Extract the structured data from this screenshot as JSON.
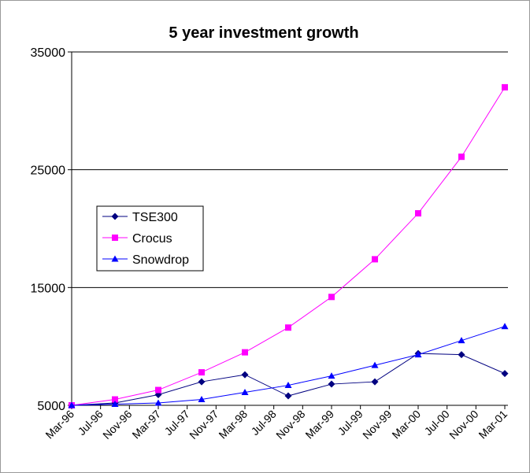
{
  "chart_data": {
    "type": "line",
    "title": "5 year investment growth",
    "x": [
      0,
      6,
      12,
      18,
      24,
      30,
      36,
      42,
      48,
      54,
      60
    ],
    "xlim": [
      0,
      60
    ],
    "xticks": [
      {
        "value": 0,
        "label": "Mar-96"
      },
      {
        "value": 4,
        "label": "Jul-96"
      },
      {
        "value": 8,
        "label": "Nov-96"
      },
      {
        "value": 12,
        "label": "Mar-97"
      },
      {
        "value": 16,
        "label": "Jul-97"
      },
      {
        "value": 20,
        "label": "Nov-97"
      },
      {
        "value": 24,
        "label": "Mar-98"
      },
      {
        "value": 28,
        "label": "Jul-98"
      },
      {
        "value": 32,
        "label": "Nov-98"
      },
      {
        "value": 36,
        "label": "Mar-99"
      },
      {
        "value": 40,
        "label": "Jul-99"
      },
      {
        "value": 44,
        "label": "Nov-99"
      },
      {
        "value": 48,
        "label": "Mar-00"
      },
      {
        "value": 52,
        "label": "Jul-00"
      },
      {
        "value": 56,
        "label": "Nov-00"
      },
      {
        "value": 60,
        "label": "Mar-01"
      }
    ],
    "ylim": [
      5000,
      35000
    ],
    "yticks": [
      5000,
      15000,
      25000,
      35000
    ],
    "grid": true,
    "series": [
      {
        "name": "TSE300",
        "color": "#000080",
        "marker": "diamond",
        "values": [
          5000,
          5200,
          5900,
          7000,
          7600,
          5800,
          6800,
          7000,
          9400,
          9300,
          7700
        ]
      },
      {
        "name": "Crocus",
        "color": "#ff00ff",
        "marker": "square",
        "values": [
          5000,
          5500,
          6300,
          7800,
          9500,
          11600,
          14200,
          17400,
          21300,
          26100,
          32000
        ]
      },
      {
        "name": "Snowdrop",
        "color": "#0000ff",
        "marker": "triangle",
        "values": [
          5000,
          5100,
          5200,
          5500,
          6100,
          6700,
          7500,
          8400,
          9300,
          10500,
          11700
        ]
      }
    ]
  }
}
